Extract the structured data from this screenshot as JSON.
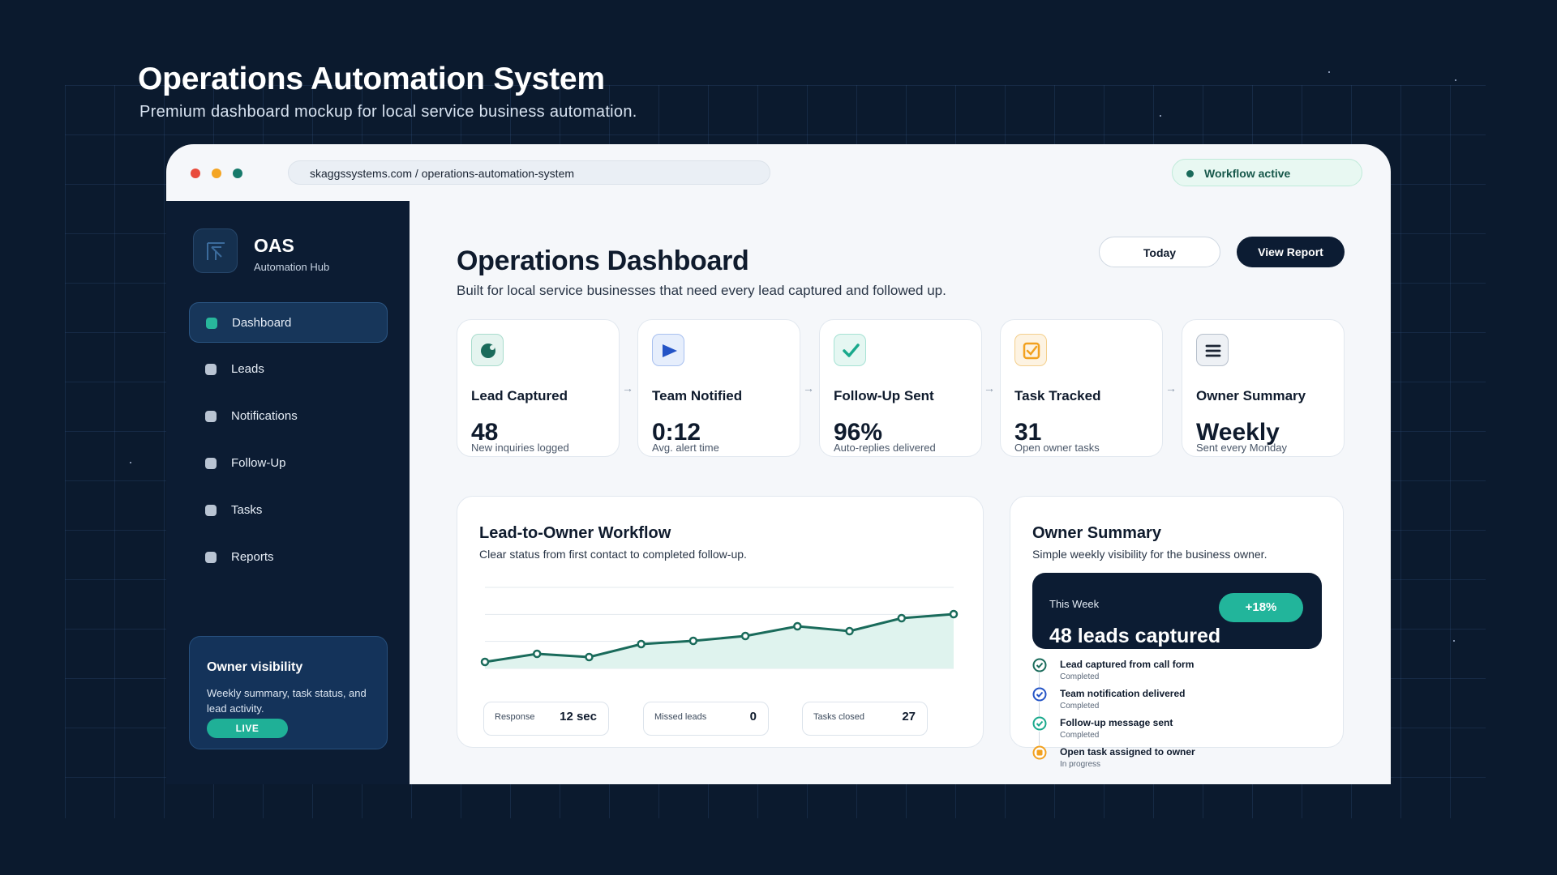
{
  "hero": {
    "title": "Operations Automation System",
    "subtitle": "Premium dashboard mockup for local service business automation."
  },
  "browser": {
    "url": "skaggssystems.com / operations-automation-system",
    "status": "Workflow active"
  },
  "sidebar": {
    "brand": "OAS",
    "tagline": "Automation Hub",
    "items": [
      {
        "label": "Dashboard",
        "active": true
      },
      {
        "label": "Leads",
        "active": false
      },
      {
        "label": "Notifications",
        "active": false
      },
      {
        "label": "Follow-Up",
        "active": false
      },
      {
        "label": "Tasks",
        "active": false
      },
      {
        "label": "Reports",
        "active": false
      }
    ],
    "owner_card": {
      "title": "Owner visibility",
      "text": "Weekly summary, task status, and lead activity.",
      "badge": "LIVE"
    }
  },
  "header": {
    "title": "Operations Dashboard",
    "subtitle": "Built for local service businesses that need every lead captured and followed up.",
    "today_label": "Today",
    "report_label": "View Report"
  },
  "stats": [
    {
      "label": "Lead Captured",
      "value": "48",
      "note": "New inquiries logged",
      "icon": "capture-icon",
      "color": "#1a6b5b"
    },
    {
      "label": "Team Notified",
      "value": "0:12",
      "note": "Avg. alert time",
      "icon": "send-icon",
      "color": "#2454c6"
    },
    {
      "label": "Follow-Up Sent",
      "value": "96%",
      "note": "Auto-replies delivered",
      "icon": "check-icon",
      "color": "#19a98c"
    },
    {
      "label": "Task Tracked",
      "value": "31",
      "note": "Open owner tasks",
      "icon": "checkbox-icon",
      "color": "#f2a11f"
    },
    {
      "label": "Owner Summary",
      "value": "Weekly",
      "note": "Sent every Monday",
      "icon": "menu-icon",
      "color": "#1b2433"
    }
  ],
  "workflow": {
    "title": "Lead-to-Owner Workflow",
    "subtitle": "Clear status from first contact to completed follow-up.",
    "metrics": [
      {
        "label": "Response",
        "value": "12 sec"
      },
      {
        "label": "Missed leads",
        "value": "0"
      },
      {
        "label": "Tasks closed",
        "value": "27"
      }
    ]
  },
  "chart_data": {
    "type": "area",
    "title": "",
    "xlabel": "",
    "ylabel": "",
    "values": [
      8,
      18,
      14,
      30,
      34,
      40,
      52,
      46,
      62,
      67
    ],
    "ylim": [
      0,
      100
    ],
    "grid": true,
    "color": "#1a6b5b",
    "fill": "#dff3ee"
  },
  "owner_summary": {
    "title": "Owner Summary",
    "subtitle": "Simple weekly visibility for the business owner.",
    "week_label": "This Week",
    "week_value": "48 leads captured",
    "week_badge": "+18%",
    "timeline": [
      {
        "text": "Lead captured from call form",
        "status": "Completed",
        "color": "#1a6b5b"
      },
      {
        "text": "Team notification delivered",
        "status": "Completed",
        "color": "#2454c6"
      },
      {
        "text": "Follow-up message sent",
        "status": "Completed",
        "color": "#19a98c"
      },
      {
        "text": "Open task assigned to owner",
        "status": "In progress",
        "color": "#f2a11f"
      }
    ]
  }
}
